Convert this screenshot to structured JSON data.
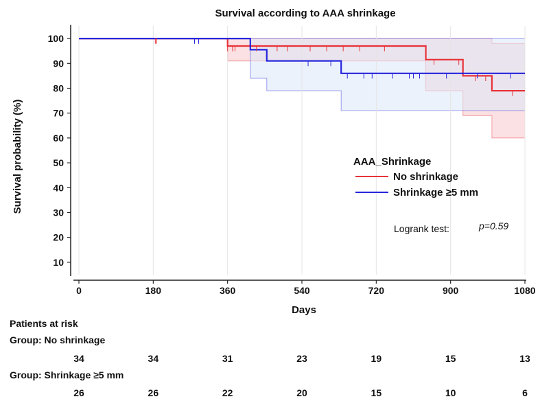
{
  "chart_data": {
    "type": "line",
    "subtype": "kaplan-meier",
    "title": "Survival according to AAA shrinkage",
    "xlabel": "Days",
    "ylabel": "Survival probability (%)",
    "xlim": [
      0,
      1080
    ],
    "ylim": [
      5,
      105
    ],
    "x_ticks": [
      0,
      180,
      360,
      540,
      720,
      900,
      1080
    ],
    "y_ticks": [
      10,
      20,
      30,
      40,
      50,
      60,
      70,
      80,
      90,
      100
    ],
    "legend": {
      "title": "AAA_Shrinkage",
      "position": "center-right"
    },
    "annotation": {
      "label": "Logrank test:",
      "value": "p=0.59"
    },
    "series": [
      {
        "name": "No shrinkage",
        "color": "#e8333a",
        "fill": "#f7c9cc",
        "steps": [
          [
            0,
            100
          ],
          [
            360,
            97
          ],
          [
            840,
            91.5
          ],
          [
            930,
            85
          ],
          [
            1000,
            79
          ],
          [
            1080,
            79
          ]
        ],
        "ci_upper": [
          [
            0,
            100
          ],
          [
            360,
            100
          ],
          [
            1000,
            98
          ],
          [
            1080,
            98
          ]
        ],
        "ci_lower": [
          [
            0,
            100
          ],
          [
            360,
            91
          ],
          [
            840,
            79
          ],
          [
            930,
            69
          ],
          [
            1000,
            60
          ],
          [
            1080,
            60
          ]
        ],
        "censors": [
          [
            185,
            99
          ],
          [
            188,
            99
          ],
          [
            360,
            96
          ],
          [
            372,
            96
          ],
          [
            378,
            96
          ],
          [
            430,
            96
          ],
          [
            480,
            96
          ],
          [
            505,
            96
          ],
          [
            560,
            96
          ],
          [
            600,
            96
          ],
          [
            640,
            96
          ],
          [
            680,
            96
          ],
          [
            740,
            96
          ],
          [
            860,
            90.5
          ],
          [
            920,
            90.5
          ],
          [
            960,
            84
          ],
          [
            985,
            84
          ],
          [
            1050,
            78
          ]
        ]
      },
      {
        "name": "Shrinkage ≥5 mm",
        "color": "#2525dd",
        "fill": "#dce8f8",
        "steps": [
          [
            0,
            100
          ],
          [
            415,
            95.5
          ],
          [
            455,
            91
          ],
          [
            635,
            86
          ],
          [
            1080,
            86
          ]
        ],
        "ci_upper": [
          [
            0,
            100
          ],
          [
            1080,
            100
          ]
        ],
        "ci_lower": [
          [
            0,
            100
          ],
          [
            360,
            100
          ],
          [
            415,
            84
          ],
          [
            455,
            79
          ],
          [
            635,
            71
          ],
          [
            1080,
            71
          ]
        ],
        "censors": [
          [
            280,
            99
          ],
          [
            290,
            99
          ],
          [
            555,
            90
          ],
          [
            610,
            90
          ],
          [
            650,
            85
          ],
          [
            690,
            85
          ],
          [
            710,
            85
          ],
          [
            760,
            85
          ],
          [
            800,
            85
          ],
          [
            810,
            85
          ],
          [
            825,
            85
          ],
          [
            890,
            85
          ],
          [
            965,
            85
          ],
          [
            1045,
            85
          ]
        ]
      }
    ],
    "risk_table": {
      "title": "Patients at risk",
      "groups": [
        {
          "label": "Group: No shrinkage",
          "counts": [
            34,
            34,
            31,
            23,
            19,
            15,
            13
          ]
        },
        {
          "label": "Group: Shrinkage ≥5 mm",
          "counts": [
            26,
            26,
            22,
            20,
            15,
            10,
            6
          ]
        }
      ]
    }
  }
}
